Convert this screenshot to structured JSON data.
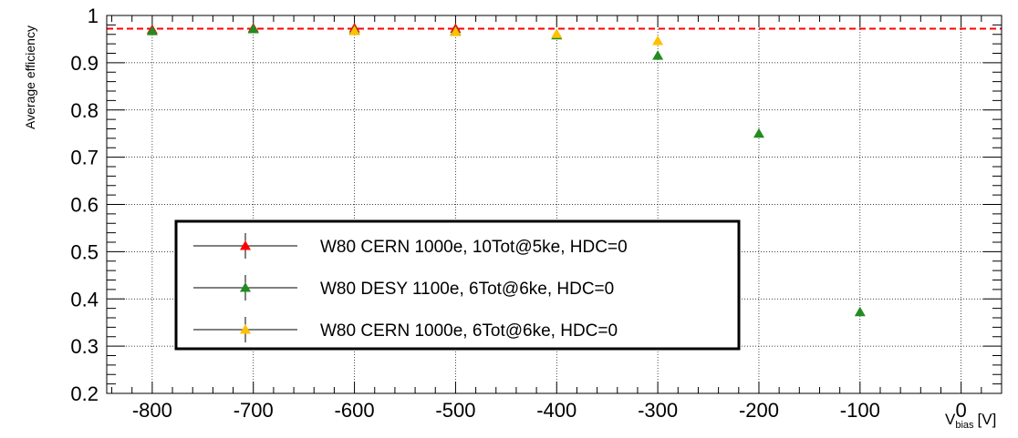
{
  "chart_data": {
    "type": "scatter",
    "title": "",
    "xlabel": "V",
    "xlabel_sub": "bias",
    "xlabel_unit": "[V]",
    "ylabel": "Average efficiency",
    "xlim": [
      -845,
      40
    ],
    "ylim": [
      0.2,
      1.0
    ],
    "x_ticks": [
      -800,
      -700,
      -600,
      -500,
      -400,
      -300,
      -200,
      -100,
      0
    ],
    "x_tick_labels": [
      "-800",
      "-700",
      "-600",
      "-500",
      "-400",
      "-300",
      "-200",
      "-100",
      "0"
    ],
    "y_ticks": [
      0.2,
      0.3,
      0.4,
      0.5,
      0.6,
      0.7,
      0.8,
      0.9,
      1.0
    ],
    "y_tick_labels": [
      "0.2",
      "0.3",
      "0.4",
      "0.5",
      "0.6",
      "0.7",
      "0.8",
      "0.9",
      "1"
    ],
    "grid": true,
    "legend_position": "left-center",
    "reference_line": {
      "y": 0.972,
      "color": "#ff0000",
      "style": "dashed"
    },
    "series": [
      {
        "name": "W80 CERN 1000e, 10Tot@5ke, HDC=0",
        "color": "#ff0000",
        "marker": "triangle",
        "x": [
          -800,
          -700,
          -600,
          -500
        ],
        "y": [
          0.97,
          0.973,
          0.973,
          0.972
        ]
      },
      {
        "name": "W80 DESY 1100e, 6Tot@6ke, HDC=0",
        "color": "#228b22",
        "marker": "triangle",
        "x": [
          -800,
          -700,
          -600,
          -500,
          -400,
          -300,
          -200,
          -100
        ],
        "y": [
          0.967,
          0.971,
          0.969,
          0.967,
          0.958,
          0.915,
          0.75,
          0.372
        ]
      },
      {
        "name": "W80 CERN 1000e, 6Tot@6ke, HDC=0",
        "color": "#ffc000",
        "marker": "triangle",
        "x": [
          -600,
          -500,
          -400,
          -300
        ],
        "y": [
          0.967,
          0.965,
          0.961,
          0.946
        ]
      }
    ]
  }
}
